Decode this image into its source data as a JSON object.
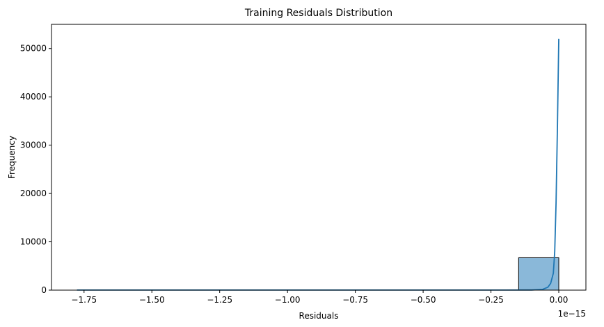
{
  "chart_data": {
    "type": "bar",
    "title": "Training Residuals Distribution",
    "xlabel": "Residuals",
    "ylabel": "Frequency",
    "x_scale_label": "1e−15",
    "x_unit_multiplier": 1e-15,
    "xlim": [
      -1.87,
      0.1
    ],
    "ylim": [
      0,
      55000
    ],
    "x_ticks": [
      -1.75,
      -1.5,
      -1.25,
      -1.0,
      -0.75,
      -0.5,
      -0.25,
      0.0
    ],
    "x_tick_labels": [
      "−1.75",
      "−1.50",
      "−1.25",
      "−1.00",
      "−0.75",
      "−0.50",
      "−0.25",
      "0.00"
    ],
    "y_ticks": [
      0,
      10000,
      20000,
      30000,
      40000,
      50000
    ],
    "y_tick_labels": [
      "0",
      "10000",
      "20000",
      "30000",
      "40000",
      "50000"
    ],
    "grid": false,
    "legend": "none",
    "histogram": {
      "bin_edges": [
        -1.776,
        -1.628,
        -1.48,
        -1.332,
        -1.184,
        -1.036,
        -0.888,
        -0.74,
        -0.592,
        -0.444,
        -0.296,
        -0.148,
        0.0
      ],
      "counts": [
        1,
        0,
        0,
        0,
        0,
        0,
        0,
        0,
        0,
        0,
        0,
        6700
      ],
      "color": "#8ab8d9",
      "edge_color": "#000000"
    },
    "kde": {
      "color": "#1f77b4",
      "x": [
        -1.776,
        -1.0,
        -0.5,
        -0.2,
        -0.1,
        -0.06,
        -0.04,
        -0.03,
        -0.02,
        -0.015,
        -0.01,
        -0.005,
        0.0
      ],
      "y": [
        20,
        10,
        10,
        15,
        30,
        150,
        600,
        1400,
        3500,
        8000,
        18000,
        34000,
        52000
      ]
    }
  }
}
